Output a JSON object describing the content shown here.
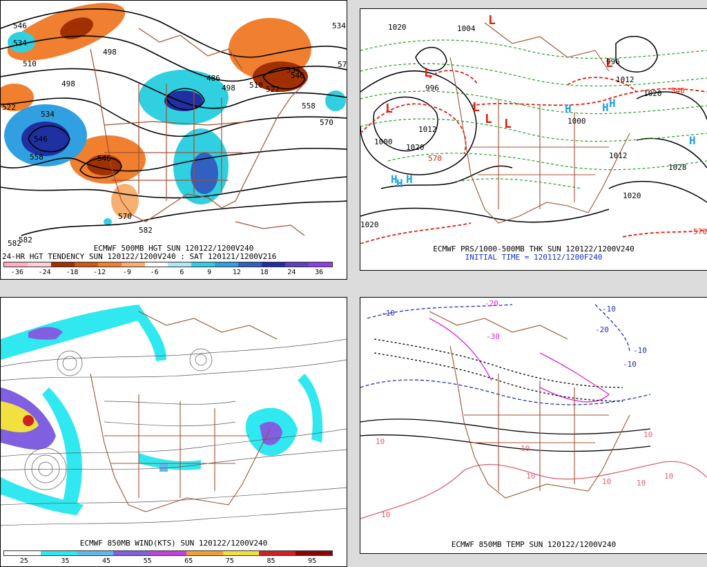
{
  "panel1": {
    "title": "ECMWF 500MB HGT SUN 120122/1200V240",
    "subtitle": "24-HR HGT TENDENCY SUN 120122/1200V240 : SAT 120121/1200V216",
    "colorbar": {
      "labels": [
        "-36",
        "-24",
        "-18",
        "-12",
        "-9",
        "-6",
        "6",
        "9",
        "12",
        "18",
        "24",
        "36"
      ],
      "colors": [
        "#ffb0c0",
        "#ffd0d8",
        "#a03000",
        "#d05810",
        "#f08030",
        "#f8b070",
        "#ffffff",
        "#b0e8f8",
        "#30d0e0",
        "#30a0e0",
        "#3060c0",
        "#2030a0",
        "#6040c0",
        "#9040e0"
      ]
    },
    "contour_labels": [
      "546",
      "534",
      "510",
      "498",
      "498",
      "486",
      "498",
      "510",
      "522",
      "534",
      "546",
      "558",
      "570",
      "582",
      "522",
      "534",
      "546",
      "558",
      "570",
      "582",
      "546",
      "570",
      "582",
      "534"
    ]
  },
  "panel2": {
    "title": "ECMWF PRS/1000-500MB THK SUN 120122/1200V240",
    "initial_time": "INITIAL TIME = 120112/1200F240",
    "low_labels": [
      "L",
      "L",
      "L",
      "L",
      "L",
      "L",
      "L"
    ],
    "high_labels": [
      "H",
      "H",
      "H",
      "H",
      "H",
      "H",
      "H"
    ],
    "pressure_labels": [
      "1020",
      "1004",
      "996",
      "1000",
      "1012",
      "1020",
      "1028",
      "1020",
      "1012",
      "1000",
      "996",
      "1012",
      "1020",
      "1020"
    ],
    "thickness_labels": [
      "570",
      "570",
      "540"
    ]
  },
  "panel3": {
    "title": "ECMWF 850MB WIND(KTS) SUN 120122/1200V240",
    "colorbar": {
      "labels": [
        "25",
        "35",
        "45",
        "55",
        "65",
        "75",
        "85",
        "95"
      ],
      "colors": [
        "#ffffff",
        "#30e8f0",
        "#60b8f0",
        "#8060e0",
        "#c040e0",
        "#f0a030",
        "#f0e040",
        "#d02020",
        "#900000"
      ]
    }
  },
  "panel4": {
    "title": "ECMWF 850MB TEMP SUN 120122/1200V240",
    "temp_labels": [
      "-30",
      "-20",
      "-10",
      "-10",
      "-10",
      "-20",
      "-10",
      "10",
      "10",
      "10",
      "10",
      "10",
      "10",
      "10",
      "10"
    ]
  },
  "colors": {
    "coast": "#a05030",
    "contour": "#000000",
    "low": "#e02010",
    "high": "#20a0e0",
    "thickness_cold": "#20a020",
    "thickness_warm": "#e02010"
  }
}
